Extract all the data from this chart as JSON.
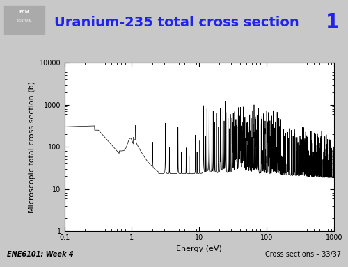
{
  "title": "Uranium-235 total cross section",
  "slide_number": "1",
  "xlabel": "Energy (eV)",
  "ylabel": "Microscopic total cross section (b)",
  "xlim": [
    0.1,
    1000
  ],
  "ylim": [
    1,
    10000
  ],
  "footer_left": "ENE6101: Week 4",
  "footer_right": "Cross sections – 33/37",
  "header_bg": "#c8c8c8",
  "title_color": "#2222ee",
  "slide_number_color": "#2222ee",
  "plot_bg": "#ffffff",
  "outer_bg": "#c8c8c8",
  "line_color": "#000000",
  "title_fontsize": 14,
  "label_fontsize": 8,
  "footer_fontsize": 7
}
